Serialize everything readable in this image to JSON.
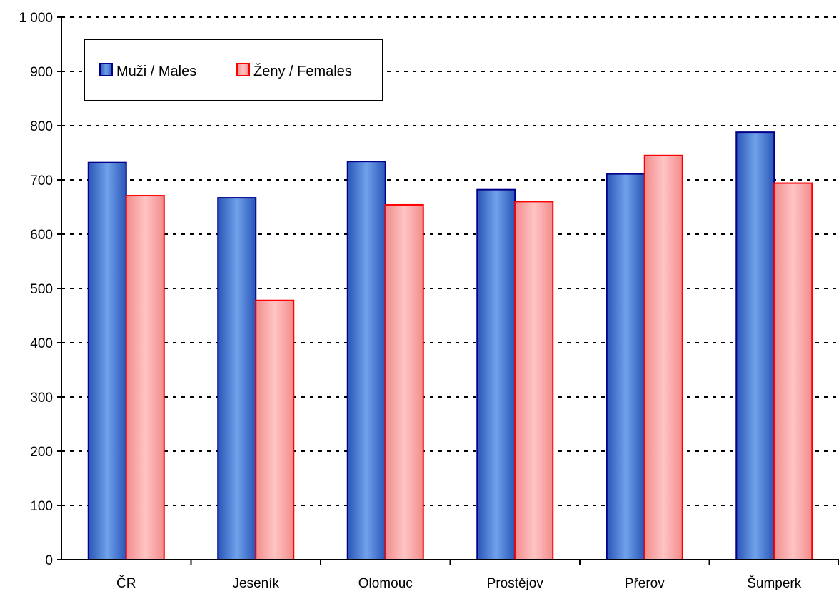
{
  "chart_data": {
    "type": "bar",
    "title": "",
    "xlabel": "",
    "ylabel": "",
    "categories": [
      "ČR",
      "Jeseník",
      "Olomouc",
      "Prostějov",
      "Přerov",
      "Šumperk"
    ],
    "series": [
      {
        "name": "Muži / Males",
        "color": "#4a7fd4",
        "edge": "#00008b",
        "values": [
          732,
          667,
          734,
          682,
          711,
          788
        ]
      },
      {
        "name": "Ženy / Females",
        "color": "#f7a3a3",
        "edge": "#ff0000",
        "values": [
          671,
          478,
          654,
          660,
          745,
          694
        ]
      }
    ],
    "ylim": [
      0,
      1000
    ],
    "yticks": [
      0,
      100,
      200,
      300,
      400,
      500,
      600,
      700,
      800,
      900,
      1000
    ],
    "ytick_labels": [
      "0",
      "100",
      "200",
      "300",
      "400",
      "500",
      "600",
      "700",
      "800",
      "900",
      "1 000"
    ],
    "grid": "horizontal dashed",
    "legend_position": "top-left"
  }
}
